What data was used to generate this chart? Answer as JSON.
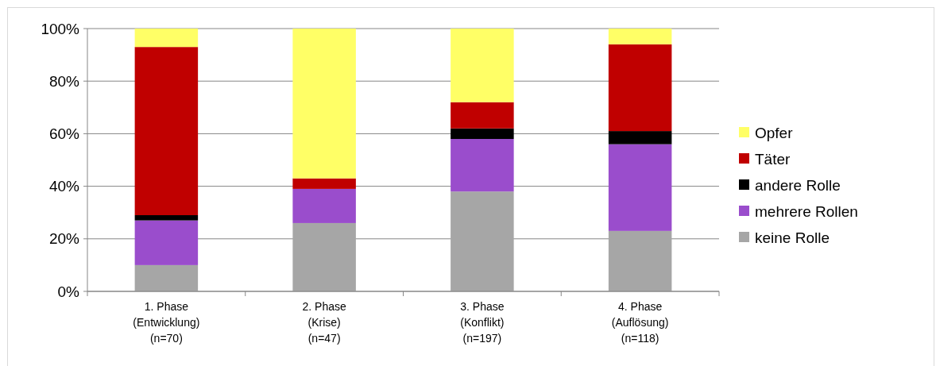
{
  "chart_data": {
    "type": "bar",
    "stacked": true,
    "categories": [
      "1. Phase\n(Entwicklung)\n(n=70)",
      "2. Phase\n(Krise)\n(n=47)",
      "3. Phase\n(Konflikt)\n(n=197)",
      "4. Phase\n(Auflösung)\n(n=118)"
    ],
    "series": [
      {
        "name": "keine Rolle",
        "color": "#a6a6a6",
        "values": [
          10,
          26,
          38,
          23
        ]
      },
      {
        "name": "mehrere Rollen",
        "color": "#9a4dcc",
        "values": [
          17,
          13,
          20,
          33
        ]
      },
      {
        "name": "andere Rolle",
        "color": "#000000",
        "values": [
          2,
          0,
          4,
          5
        ]
      },
      {
        "name": "Täter",
        "color": "#c00000",
        "values": [
          64,
          4,
          10,
          33
        ]
      },
      {
        "name": "Opfer",
        "color": "#ffff66",
        "values": [
          7,
          57,
          28,
          6
        ]
      }
    ],
    "ylim": [
      0,
      100
    ],
    "yticks": [
      {
        "value": 0,
        "label": "0%"
      },
      {
        "value": 20,
        "label": "20%"
      },
      {
        "value": 40,
        "label": "40%"
      },
      {
        "value": 60,
        "label": "60%"
      },
      {
        "value": 80,
        "label": "80%"
      },
      {
        "value": 100,
        "label": "100%"
      }
    ],
    "grid": "y",
    "legend": "right"
  }
}
